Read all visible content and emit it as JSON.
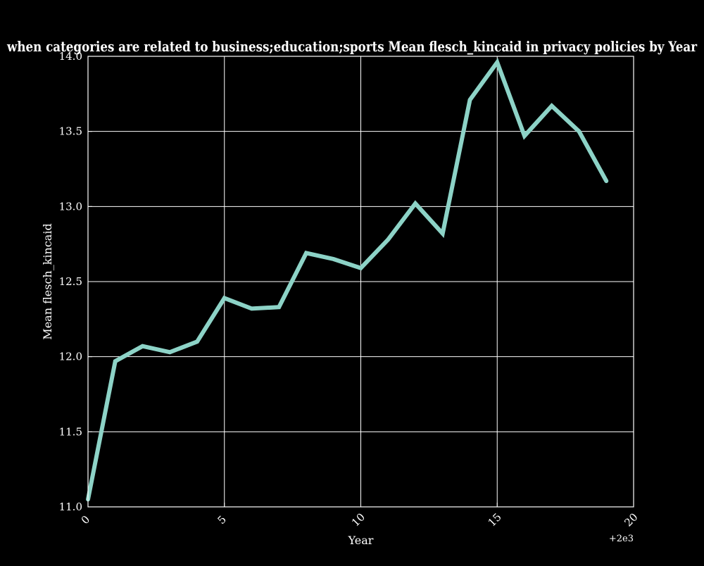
{
  "chart_data": {
    "type": "line",
    "title": "when categories are related to business;education;sports Mean flesch_kincaid in privacy policies by Year",
    "xlabel": "Year",
    "ylabel": "Mean flesch_kincaid",
    "x_offset_label": "+2e3",
    "xlim": [
      0,
      20
    ],
    "ylim": [
      11.0,
      14.0
    ],
    "x_ticks": [
      0,
      5,
      10,
      15,
      20
    ],
    "x_tick_labels": [
      "0",
      "5",
      "10",
      "15",
      "20"
    ],
    "y_ticks": [
      11.0,
      11.5,
      12.0,
      12.5,
      13.0,
      13.5,
      14.0
    ],
    "y_tick_labels": [
      "11.0",
      "11.5",
      "12.0",
      "12.5",
      "13.0",
      "13.5",
      "14.0"
    ],
    "grid": true,
    "background_color": "#000000",
    "foreground_color": "#ffffff",
    "series": [
      {
        "color": "#8dd3c7",
        "x": [
          0,
          1,
          2,
          3,
          4,
          5,
          6,
          7,
          8,
          9,
          10,
          11,
          12,
          13,
          14,
          15,
          16,
          17,
          18,
          19
        ],
        "y": [
          11.05,
          11.97,
          12.07,
          12.03,
          12.1,
          12.39,
          12.32,
          12.33,
          12.69,
          12.65,
          12.59,
          12.78,
          13.02,
          12.82,
          13.71,
          13.96,
          13.47,
          13.67,
          13.5,
          13.17
        ]
      }
    ]
  }
}
